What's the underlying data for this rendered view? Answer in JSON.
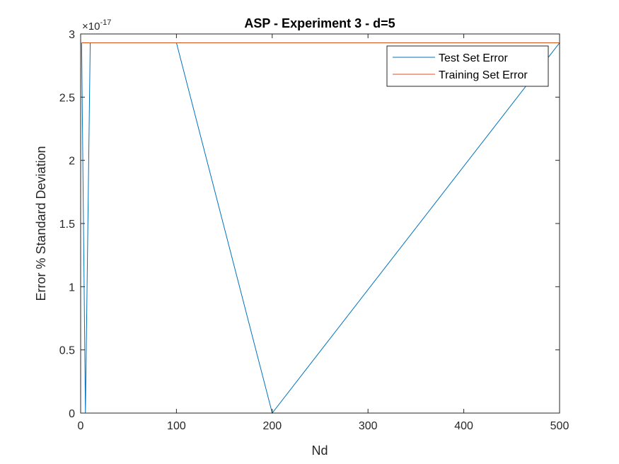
{
  "chart_data": {
    "type": "line",
    "title": "ASP - Experiment 3 - d=5",
    "xlabel": "Nd",
    "ylabel": "Error % Standard Deviation",
    "xlim": [
      0,
      500
    ],
    "ylim": [
      0,
      3
    ],
    "y_exponent_label": "×10",
    "y_exponent": "-17",
    "xticks": [
      0,
      100,
      200,
      300,
      400,
      500
    ],
    "xtick_labels": [
      "0",
      "100",
      "200",
      "300",
      "400",
      "500"
    ],
    "yticks": [
      0,
      0.5,
      1,
      1.5,
      2,
      2.5,
      3
    ],
    "ytick_labels": [
      "0",
      "0.5",
      "1",
      "1.5",
      "2",
      "2.5",
      "3"
    ],
    "grid": false,
    "legend_position": "top-right",
    "series": [
      {
        "name": "Test Set Error",
        "color": "#0072BD",
        "x": [
          1,
          5,
          10,
          100,
          200,
          500
        ],
        "y": [
          2.93,
          0,
          2.93,
          2.93,
          0,
          2.93
        ]
      },
      {
        "name": "Training Set Error",
        "color": "#D95319",
        "x": [
          1,
          5,
          10,
          100,
          200,
          500
        ],
        "y": [
          2.93,
          2.93,
          2.93,
          2.93,
          2.93,
          2.93
        ]
      }
    ]
  }
}
